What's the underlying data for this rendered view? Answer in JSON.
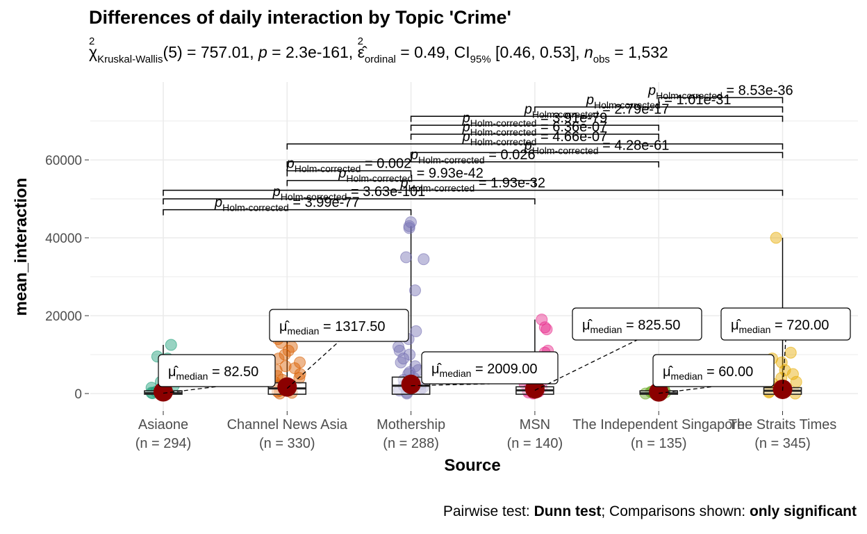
{
  "title": "Differences of daily interaction by Topic 'Crime'",
  "subtitle": {
    "chi": "χ",
    "chi_sup": "2",
    "test_sub": "Kruskal-Wallis",
    "df_text": "(5) = 757.01, ",
    "p_label": "p",
    "p_text": " = 2.3e-161, ",
    "eps": "ε̂",
    "eps_sup": "2",
    "eps_sub": "ordinal",
    "eps_text": " = 0.49, CI",
    "ci_sub": "95%",
    "ci_text": " [0.46, 0.53], ",
    "n_label": "n",
    "n_sub": "obs",
    "n_text": " = 1,532"
  },
  "caption": {
    "pairwise_label": "Pairwise test: ",
    "pairwise_value": "Dunn test",
    "comparisons_label": "; Comparisons shown: ",
    "comparisons_value": "only significant"
  },
  "colors": {
    "Asiaone": "#1B9E77",
    "Channel News Asia": "#D95F02",
    "Mothership": "#7570B3",
    "MSN": "#E7298A",
    "The Independent Singapore": "#66A61E",
    "The Straits Times": "#E6AB02",
    "mean_point": "#8B0000",
    "grid": "#EBEBEB"
  },
  "chart_data": {
    "type": "scatter",
    "subtype": "box-violin with jittered points (ggbetweenstats)",
    "xlabel": "Source",
    "ylabel": "mean_interaction",
    "ylim": [
      -4000,
      78000
    ],
    "yticks": [
      0,
      20000,
      40000,
      60000
    ],
    "ytick_labels": [
      "0",
      "20000",
      "40000",
      "60000"
    ],
    "categories": [
      "Asiaone",
      "Channel News Asia",
      "Mothership",
      "MSN",
      "The Independent Singapore",
      "The Straits Times"
    ],
    "n_labels": [
      "(n = 294)",
      "(n = 330)",
      "(n = 288)",
      "(n = 140)",
      "(n = 135)",
      "(n = 345)"
    ],
    "medians": [
      82.5,
      1317.5,
      2009.0,
      825.5,
      60.0,
      720.0
    ],
    "median_labels": [
      "82.50",
      "1317.50",
      "2009.00",
      "825.50",
      "60.00",
      "720.00"
    ],
    "median_symbol": "μ̂",
    "median_sub": "median",
    "points": [
      [
        0,
        300,
        100,
        500,
        800,
        1200,
        1500,
        2000,
        2500,
        3000,
        9500,
        12500,
        9000,
        200,
        50
      ],
      [
        0,
        200,
        500,
        1000,
        1500,
        2000,
        3000,
        4000,
        5000,
        6000,
        7000,
        8000,
        9000,
        10000,
        11000,
        12000,
        13000,
        14000,
        15000,
        16500,
        800,
        2500,
        3500,
        4500,
        6500
      ],
      [
        0,
        300,
        800,
        1500,
        2000,
        2500,
        3000,
        3500,
        4000,
        5000,
        6000,
        7000,
        8000,
        9000,
        10000,
        11000,
        12000,
        14000,
        16000,
        26500,
        34500,
        35000,
        42500,
        44000,
        43000,
        1200,
        5500
      ],
      [
        0,
        300,
        800,
        1500,
        2500,
        4000,
        6500,
        10500,
        11000,
        16500,
        17000,
        19000,
        500,
        1000
      ],
      [
        0,
        100,
        200,
        400,
        800,
        1200,
        300,
        500
      ],
      [
        0,
        300,
        800,
        1200,
        1500,
        2000,
        3000,
        4000,
        5000,
        6000,
        8000,
        9000,
        10500,
        20500,
        40000,
        500,
        2500
      ]
    ],
    "whisker_max": [
      12500,
      16500,
      43000,
      19000,
      1200,
      40000
    ],
    "comparisons": [
      {
        "pair": [
          0,
          2
        ],
        "y": 47200,
        "label": "3.99e-77"
      },
      {
        "pair": [
          0,
          3
        ],
        "y": 50000,
        "label": "3.63e-101"
      },
      {
        "pair": [
          0,
          5
        ],
        "y": 52200,
        "label": "1.93e-32"
      },
      {
        "pair": [
          1,
          3
        ],
        "y": 54700,
        "label": "9.93e-42"
      },
      {
        "pair": [
          1,
          2
        ],
        "y": 57200,
        "label": "0.002"
      },
      {
        "pair": [
          1,
          4
        ],
        "y": 59500,
        "label": "0.026"
      },
      {
        "pair": [
          2,
          5
        ],
        "y": 61900,
        "label": "4.28e-61"
      },
      {
        "pair": [
          1,
          5
        ],
        "y": 64100,
        "label": "4.66e-07"
      },
      {
        "pair": [
          2,
          4
        ],
        "y": 66600,
        "label": "6.36e-07"
      },
      {
        "pair": [
          2,
          4
        ],
        "y": 68900,
        "label": "3.91e-79"
      },
      {
        "pair": [
          2,
          5
        ],
        "y": 71200,
        "label": "2.79e-17"
      },
      {
        "pair": [
          3,
          5
        ],
        "y": 73600,
        "label": "1.01e-31"
      },
      {
        "pair": [
          4,
          5
        ],
        "y": 76000,
        "label": "8.53e-36"
      }
    ],
    "comparison_p": "p",
    "comparison_sub": "Holm-corrected",
    "grid": true,
    "legend": "none"
  }
}
